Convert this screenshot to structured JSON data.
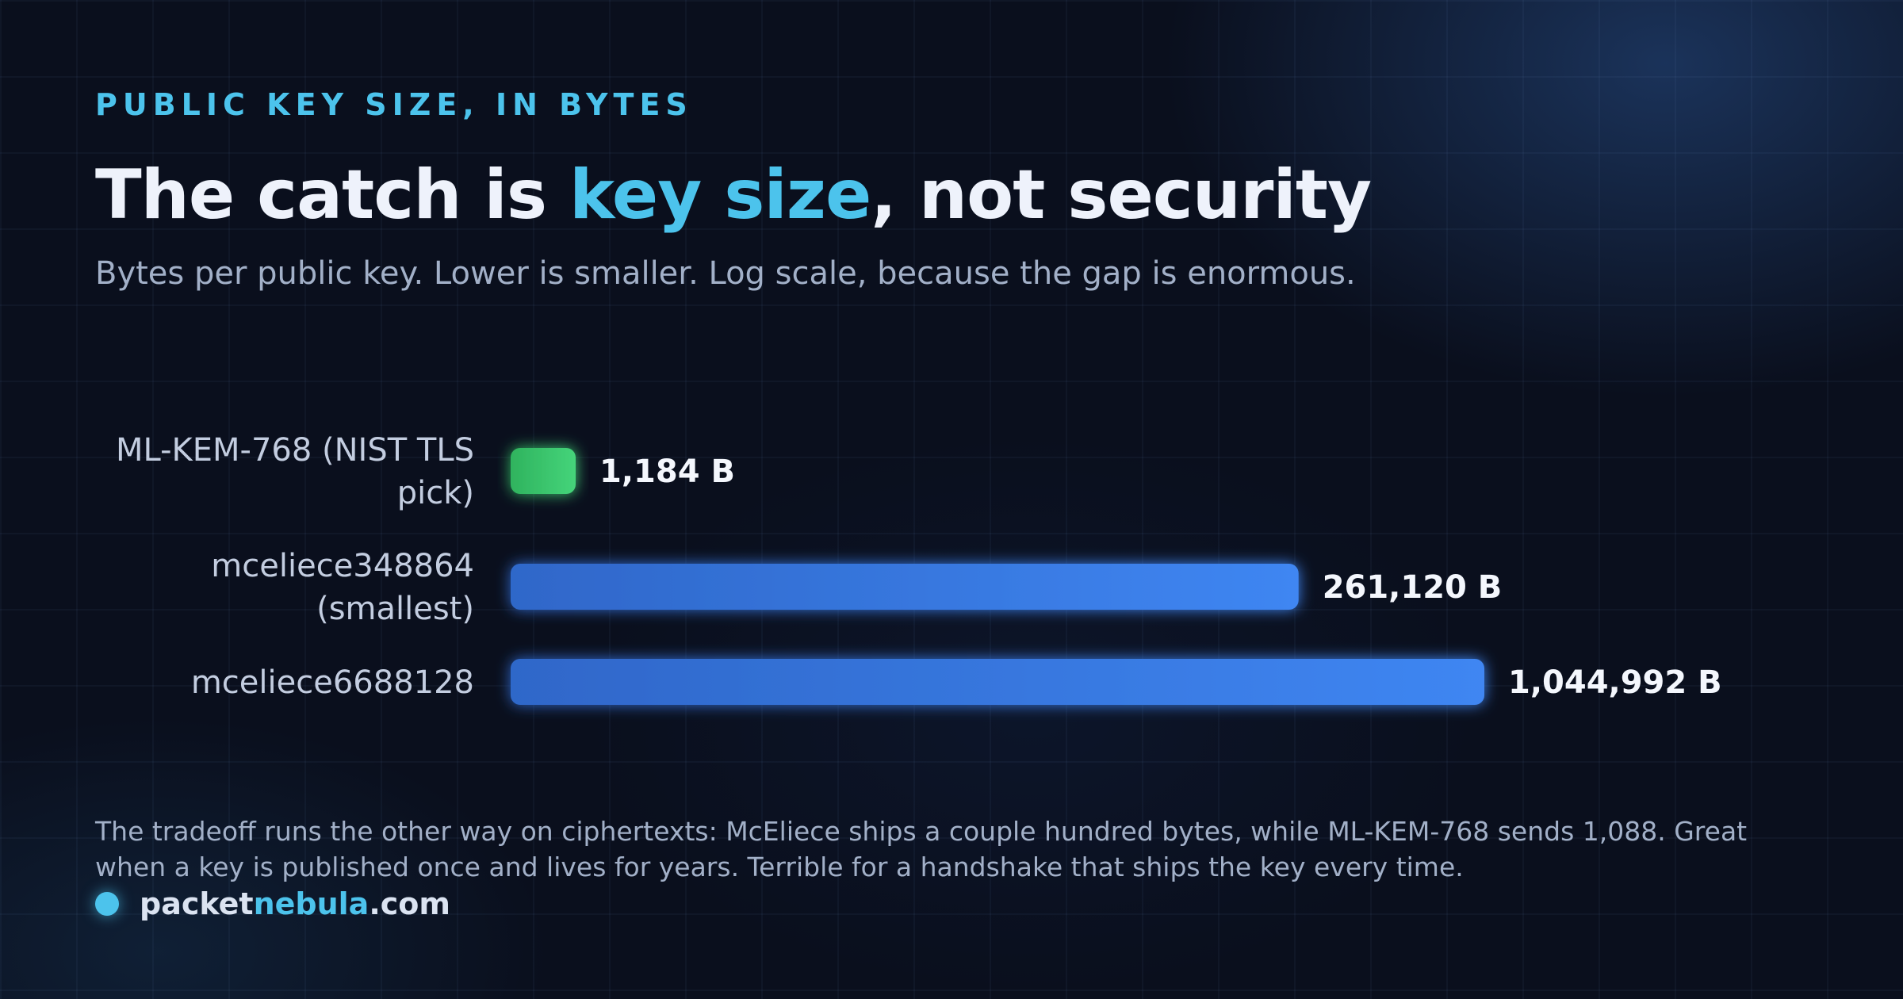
{
  "header": {
    "eyebrow": "PUBLIC KEY SIZE, IN BYTES",
    "title_before": "The catch is ",
    "title_accent": "key size",
    "title_after": ", not security",
    "subtitle": "Bytes per public key. Lower is smaller. Log scale, because the gap is enormous."
  },
  "chart_data": {
    "type": "bar",
    "orientation": "horizontal",
    "scale": "log",
    "categories": [
      [
        "ML-KEM-768 (NIST TLS",
        "pick)"
      ],
      [
        "mceliece348864",
        "(smallest)"
      ],
      [
        "mceliece6688128"
      ]
    ],
    "values": [
      1184,
      261120,
      1044992
    ],
    "value_labels": [
      "1,184 B",
      "261,120 B",
      "1,044,992 B"
    ],
    "bar_colors": [
      "#37c46b",
      "#3b7fe6",
      "#3b7fe6"
    ],
    "title": "The catch is key size, not security",
    "xlabel": "",
    "ylabel": ""
  },
  "footnote": "The tradeoff runs the other way on ciphertexts: McEliece ships a couple hundred bytes, while ML-KEM-768 sends 1,088. Great when a key is published once and lives for years. Terrible for a handshake that ships the key every time.",
  "brand": {
    "part1": "packet",
    "part2": "nebula",
    "part3": ".com"
  },
  "colors": {
    "accent": "#4cc3ec",
    "background": "#0a0f1d",
    "bar_primary": "#3b7fe6",
    "bar_highlight": "#37c46b"
  }
}
